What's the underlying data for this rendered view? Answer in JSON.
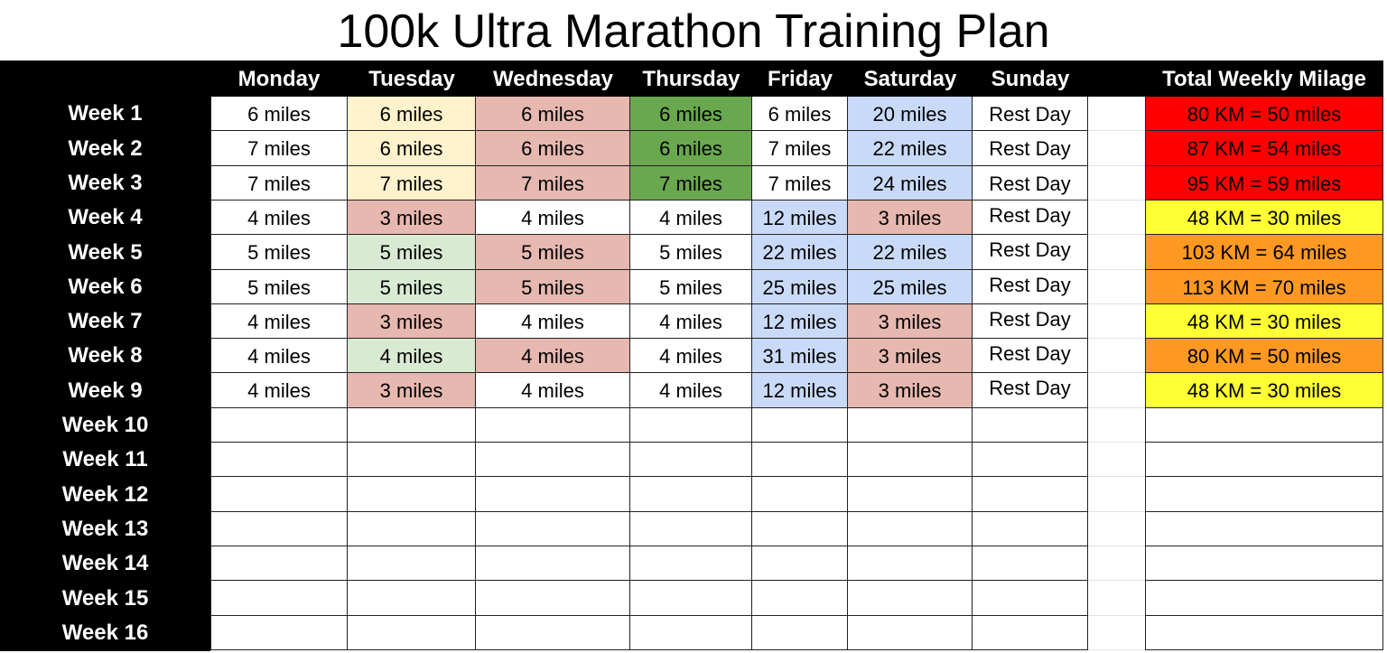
{
  "title": "100k Ultra Marathon Training Plan",
  "columns": {
    "week": "",
    "days": [
      "Monday",
      "Tuesday",
      "Wednesday",
      "Thursday",
      "Friday",
      "Saturday",
      "Sunday"
    ],
    "total": "Total Weekly Milage"
  },
  "colors": {
    "header_bg": "#000000",
    "header_text": "#ffffff",
    "light_yellow": "#fff2cc",
    "light_red": "#e6b8af",
    "green": "#6aa84f",
    "light_green": "#d9ead3",
    "light_blue": "#c9daf8",
    "red": "#ff0000",
    "yellow": "#ffff33",
    "orange": "#ff9922",
    "white": "#ffffff"
  },
  "weeks": [
    {
      "label": "Week 1",
      "days": [
        "6 miles",
        "6 miles",
        "6 miles",
        "6 miles",
        "6 miles",
        "20 miles",
        "Rest Day"
      ],
      "fills": [
        "white",
        "light_yellow",
        "light_red",
        "green",
        "white",
        "light_blue",
        "white"
      ],
      "total": "80 KM = 50 miles",
      "total_fill": "red"
    },
    {
      "label": "Week 2",
      "days": [
        "7 miles",
        "6 miles",
        "6 miles",
        "6 miles",
        "7 miles",
        "22 miles",
        "Rest Day"
      ],
      "fills": [
        "white",
        "light_yellow",
        "light_red",
        "green",
        "white",
        "light_blue",
        "white"
      ],
      "total": "87 KM = 54 miles",
      "total_fill": "red"
    },
    {
      "label": "Week 3",
      "days": [
        "7 miles",
        "7 miles",
        "7 miles",
        "7 miles",
        "7 miles",
        "24 miles",
        "Rest Day"
      ],
      "fills": [
        "white",
        "light_yellow",
        "light_red",
        "green",
        "white",
        "light_blue",
        "white"
      ],
      "total": "95 KM = 59 miles",
      "total_fill": "red"
    },
    {
      "label": "Week 4",
      "days": [
        "4 miles",
        "3 miles",
        "4 miles",
        "4 miles",
        "12 miles",
        "3 miles",
        "Rest Day"
      ],
      "fills": [
        "white",
        "light_red",
        "white",
        "white",
        "light_blue",
        "light_red",
        "white"
      ],
      "total": "48 KM = 30 miles",
      "total_fill": "yellow"
    },
    {
      "label": "Week 5",
      "days": [
        "5 miles",
        "5 miles",
        "5 miles",
        "5 miles",
        "22 miles",
        "22 miles",
        "Rest Day"
      ],
      "fills": [
        "white",
        "light_green",
        "light_red",
        "white",
        "light_blue",
        "light_blue",
        "white"
      ],
      "total": "103 KM = 64 miles",
      "total_fill": "orange"
    },
    {
      "label": "Week 6",
      "days": [
        "5 miles",
        "5 miles",
        "5 miles",
        "5 miles",
        "25 miles",
        "25 miles",
        "Rest Day"
      ],
      "fills": [
        "white",
        "light_green",
        "light_red",
        "white",
        "light_blue",
        "light_blue",
        "white"
      ],
      "total": "113 KM = 70 miles",
      "total_fill": "orange"
    },
    {
      "label": "Week 7",
      "days": [
        "4 miles",
        "3 miles",
        "4 miles",
        "4 miles",
        "12 miles",
        "3 miles",
        "Rest Day"
      ],
      "fills": [
        "white",
        "light_red",
        "white",
        "white",
        "light_blue",
        "light_red",
        "white"
      ],
      "total": "48 KM = 30 miles",
      "total_fill": "yellow"
    },
    {
      "label": "Week 8",
      "days": [
        "4 miles",
        "4 miles",
        "4 miles",
        "4 miles",
        "31 miles",
        "3 miles",
        "Rest Day"
      ],
      "fills": [
        "white",
        "light_green",
        "light_red",
        "white",
        "light_blue",
        "light_red",
        "white"
      ],
      "total": "80 KM = 50 miles",
      "total_fill": "orange"
    },
    {
      "label": "Week 9",
      "days": [
        "4 miles",
        "3 miles",
        "4 miles",
        "4 miles",
        "12 miles",
        "3 miles",
        "Rest Day"
      ],
      "fills": [
        "white",
        "light_red",
        "white",
        "white",
        "light_blue",
        "light_red",
        "white"
      ],
      "total": "48 KM = 30 miles",
      "total_fill": "yellow"
    },
    {
      "label": "Week 10",
      "days": [
        "",
        "",
        "",
        "",
        "",
        "",
        ""
      ],
      "fills": [
        "white",
        "white",
        "white",
        "white",
        "white",
        "white",
        "white"
      ],
      "total": "",
      "total_fill": "white"
    },
    {
      "label": "Week 11",
      "days": [
        "",
        "",
        "",
        "",
        "",
        "",
        ""
      ],
      "fills": [
        "white",
        "white",
        "white",
        "white",
        "white",
        "white",
        "white"
      ],
      "total": "",
      "total_fill": "white"
    },
    {
      "label": "Week 12",
      "days": [
        "",
        "",
        "",
        "",
        "",
        "",
        ""
      ],
      "fills": [
        "white",
        "white",
        "white",
        "white",
        "white",
        "white",
        "white"
      ],
      "total": "",
      "total_fill": "white"
    },
    {
      "label": "Week 13",
      "days": [
        "",
        "",
        "",
        "",
        "",
        "",
        ""
      ],
      "fills": [
        "white",
        "white",
        "white",
        "white",
        "white",
        "white",
        "white"
      ],
      "total": "",
      "total_fill": "white"
    },
    {
      "label": "Week 14",
      "days": [
        "",
        "",
        "",
        "",
        "",
        "",
        ""
      ],
      "fills": [
        "white",
        "white",
        "white",
        "white",
        "white",
        "white",
        "white"
      ],
      "total": "",
      "total_fill": "white"
    },
    {
      "label": "Week 15",
      "days": [
        "",
        "",
        "",
        "",
        "",
        "",
        ""
      ],
      "fills": [
        "white",
        "white",
        "white",
        "white",
        "white",
        "white",
        "white"
      ],
      "total": "",
      "total_fill": "white"
    },
    {
      "label": "Week 16",
      "days": [
        "",
        "",
        "",
        "",
        "",
        "",
        ""
      ],
      "fills": [
        "white",
        "white",
        "white",
        "white",
        "white",
        "white",
        "white"
      ],
      "total": "",
      "total_fill": "white"
    }
  ]
}
